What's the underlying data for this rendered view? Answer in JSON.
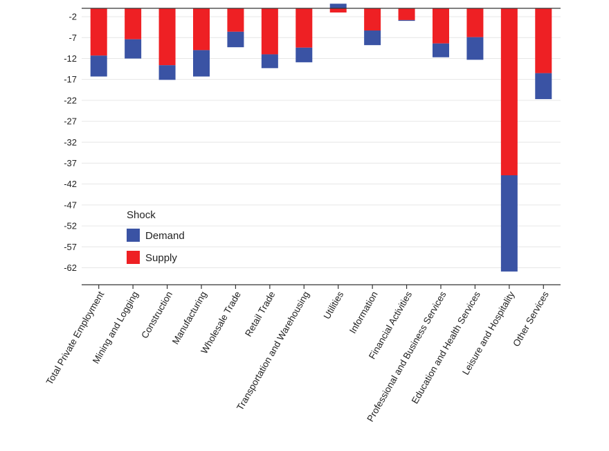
{
  "chart_data": {
    "type": "bar",
    "stacked": true,
    "title": "",
    "xlabel": "",
    "ylabel": "",
    "ylim": [
      -64,
      0
    ],
    "yticks": [
      -2,
      -7,
      -12,
      -17,
      -22,
      -27,
      -32,
      -37,
      -42,
      -47,
      -52,
      -57,
      -62
    ],
    "categories": [
      "Total Private Employment",
      "Mining and Logging",
      "Construction",
      "Manufacturing",
      "Wholesale Trade",
      "Retail Trade",
      "Transportation and Warehousing",
      "Utilities",
      "Information",
      "Financial Activities",
      "Professional and Business Services",
      "Education and Health Services",
      "Leisure and Hospitality",
      "Other Services"
    ],
    "series": [
      {
        "name": "Supply",
        "color": "#ee2024",
        "values": [
          -11.3,
          -7.4,
          -13.6,
          -10.0,
          -5.6,
          -11.0,
          -9.4,
          -1.0,
          -5.3,
          -2.8,
          -8.4,
          -6.9,
          -39.9,
          -15.5
        ]
      },
      {
        "name": "Demand",
        "color": "#3a53a4",
        "values": [
          -5.0,
          -4.6,
          -3.5,
          -6.3,
          -3.7,
          -3.3,
          -3.5,
          1.1,
          -3.5,
          -0.2,
          -3.3,
          -5.4,
          -23.0,
          -6.2
        ]
      }
    ],
    "legend": {
      "title": "Shock",
      "position": "lower-left",
      "entries": [
        {
          "label": "Demand",
          "color": "#3a53a4"
        },
        {
          "label": "Supply",
          "color": "#ee2024"
        }
      ]
    },
    "grid": true
  }
}
